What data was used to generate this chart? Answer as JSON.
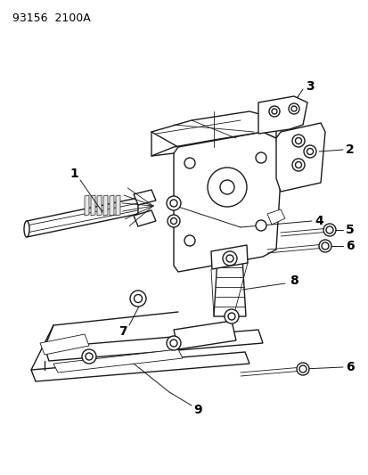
{
  "title": "93156  2100A",
  "background_color": "#ffffff",
  "line_color": "#1a1a1a",
  "label_color": "#000000",
  "label_fontsize": 9,
  "fig_width": 4.14,
  "fig_height": 5.33,
  "dpi": 100,
  "title_fontsize": 9,
  "lw_main": 1.0,
  "lw_thin": 0.6,
  "lw_thick": 1.3
}
